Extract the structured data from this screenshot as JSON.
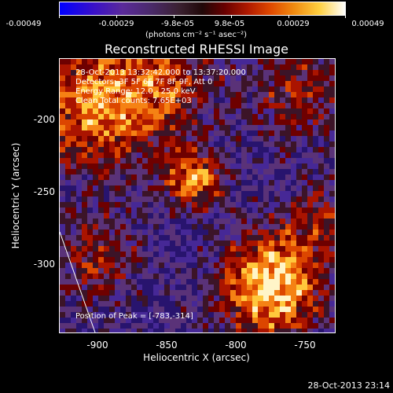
{
  "colorbar": {
    "ticks": [
      "-0.00049",
      "-0.00029",
      "-9.8e-05",
      "9.8e-05",
      "0.00029",
      "0.00049"
    ],
    "units": "(photons cm⁻² s⁻¹ asec⁻²)",
    "colors": [
      "#0000ff",
      "#5a2a9a",
      "#200808",
      "#b01a00",
      "#f08a10",
      "#ffffff"
    ]
  },
  "title": "Reconstructed RHESSI Image",
  "info": {
    "line1": "28-Oct-2013 13:32:42.000 to 13:37:20.000",
    "line2": "Detectors: 3F 5F 6F 7F 8F 9F, Att 0",
    "line3": "Energy Range: 12.0 - 25.0 keV",
    "line4": "Clean     Total counts: 7.65E+03"
  },
  "peak": "Position of Peak = [-783,-314]",
  "axes": {
    "xlabel": "Heliocentric X (arcsec)",
    "ylabel": "Heliocentric Y (arcsec)",
    "xticks": [
      "-900",
      "-850",
      "-800",
      "-750"
    ],
    "yticks": [
      "-200",
      "-250",
      "-300"
    ]
  },
  "timestamp": "28-Oct-2013 23:14"
}
